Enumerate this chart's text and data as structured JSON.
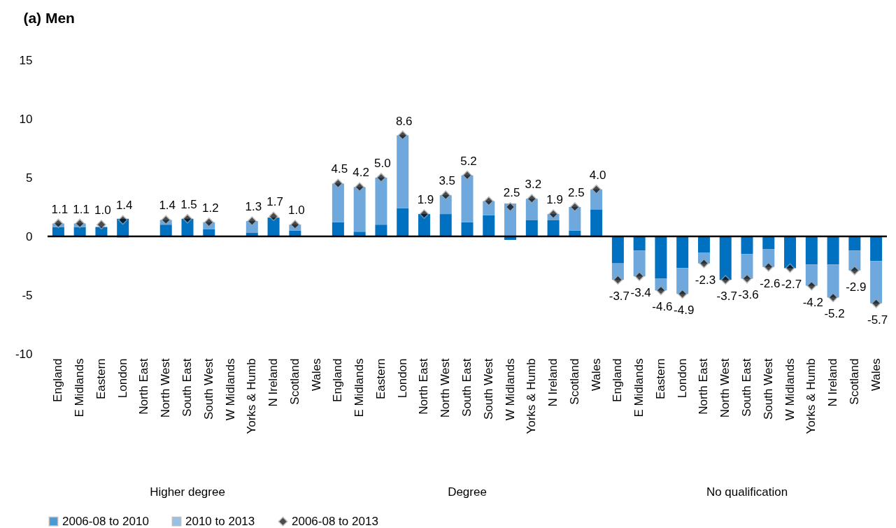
{
  "chart_data": {
    "type": "bar",
    "title": "(a)  Men",
    "stacked": true,
    "legend": "bottom",
    "grid": false,
    "ylim": [
      -10,
      15
    ],
    "yticks": [
      -10,
      -5,
      0,
      5,
      10,
      15
    ],
    "categories": [
      "England",
      "E Midlands",
      "Eastern",
      "London",
      "North East",
      "North West",
      "South East",
      "South West",
      "W Midlands",
      "Yorks & Humb",
      "N Ireland",
      "Scotland",
      "Wales",
      "England",
      "E Midlands",
      "Eastern",
      "London",
      "North East",
      "North West",
      "South East",
      "South West",
      "W Midlands",
      "Yorks & Humb",
      "N Ireland",
      "Scotland",
      "Wales",
      "England",
      "E Midlands",
      "Eastern",
      "London",
      "North East",
      "North West",
      "South East",
      "South West",
      "W Midlands",
      "Yorks & Humb",
      "N Ireland",
      "Scotland",
      "Wales"
    ],
    "ref_lines": [
      {
        "axis": "y",
        "value": 0,
        "color": "#000000"
      }
    ],
    "annotations": [
      "Higher degree",
      "Degree",
      "No qualification"
    ],
    "series": [
      {
        "name": "2006-08 to 2010",
        "color": "#0070c0",
        "values": [
          0.8,
          0.8,
          0.8,
          1.5,
          null,
          1.0,
          1.5,
          0.6,
          null,
          0.3,
          1.6,
          0.5,
          null,
          1.2,
          0.4,
          1.0,
          2.4,
          1.9,
          1.9,
          1.2,
          1.8,
          -0.3,
          1.4,
          1.4,
          0.5,
          2.3,
          -2.3,
          -1.2,
          -3.6,
          -2.7,
          -1.4,
          -3.7,
          -1.5,
          -1.1,
          -2.7,
          -2.4,
          -2.4,
          -1.2,
          -2.1
        ]
      },
      {
        "name": "2010 to 2013",
        "color": "#6fa8dc",
        "values": [
          0.3,
          0.3,
          null,
          -0.1,
          null,
          0.4,
          0,
          0.6,
          null,
          1.0,
          null,
          0.5,
          null,
          3.3,
          3.8,
          4.0,
          6.2,
          0,
          1.6,
          4.0,
          1.2,
          2.8,
          1.8,
          0.5,
          2.0,
          1.7,
          -1.4,
          -2.2,
          -1.0,
          -2.2,
          -0.9,
          0,
          -2.1,
          -1.5,
          0,
          -1.8,
          -2.8,
          -1.7,
          -3.6
        ]
      },
      {
        "name": "2006-08 to 2013",
        "type": "scatter",
        "marker": "diamond",
        "color": "#000000",
        "values": [
          1.1,
          1.1,
          1.0,
          1.4,
          null,
          1.4,
          1.5,
          1.2,
          null,
          1.3,
          1.7,
          1.0,
          null,
          4.5,
          4.2,
          5.0,
          8.6,
          1.9,
          3.5,
          5.2,
          3.0,
          2.5,
          3.2,
          1.9,
          2.5,
          4.0,
          -3.7,
          -3.4,
          -4.6,
          -4.9,
          -2.3,
          -3.7,
          -3.6,
          -2.6,
          -2.7,
          -4.2,
          -5.2,
          -2.9,
          -5.7
        ],
        "value_labels": [
          "1.1",
          "1.1",
          "1.0",
          "1.4",
          null,
          "1.4",
          "1.5",
          "1.2",
          null,
          "1.3",
          "1.7",
          "1.0",
          null,
          "4.5",
          "4.2",
          "5.0",
          "8.6",
          "1.9",
          "3.5",
          "5.2",
          null,
          "2.5",
          "3.2",
          "1.9",
          "2.5",
          "4.0",
          "-3.7",
          "-3.4",
          "-4.6",
          "-4.9",
          "-2.3",
          "-3.7",
          "-3.6",
          "-2.6",
          "-2.7",
          "-4.2",
          "-5.2",
          "-2.9",
          "-5.7"
        ]
      }
    ]
  }
}
